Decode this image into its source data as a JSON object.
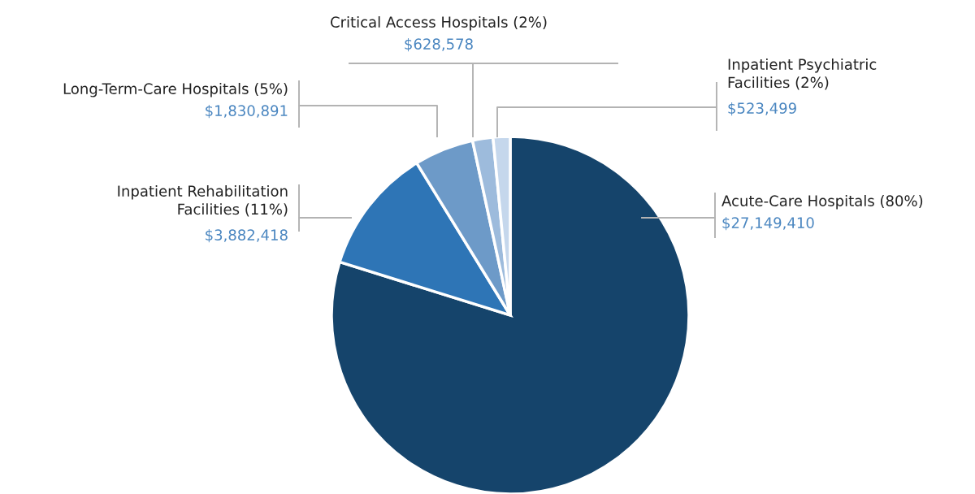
{
  "chart_data": {
    "type": "pie",
    "categories": [
      "Acute-Care Hospitals (80%)",
      "Inpatient Rehabilitation\nFacilities (11%)",
      "Long-Term-Care Hospitals (5%)",
      "Critical Access Hospitals (2%)",
      "Inpatient Psychiatric\nFacilities (2%)"
    ],
    "values": [
      27149410,
      3882418,
      1830891,
      628578,
      523499
    ],
    "colors": [
      "#15446b",
      "#2e75b6",
      "#6d9ac8",
      "#9dbbdc",
      "#c5d7ec"
    ],
    "value_labels": [
      "$27,149,410",
      "$3,882,418",
      "$1,830,891",
      "$628,578",
      "$523,499"
    ]
  }
}
